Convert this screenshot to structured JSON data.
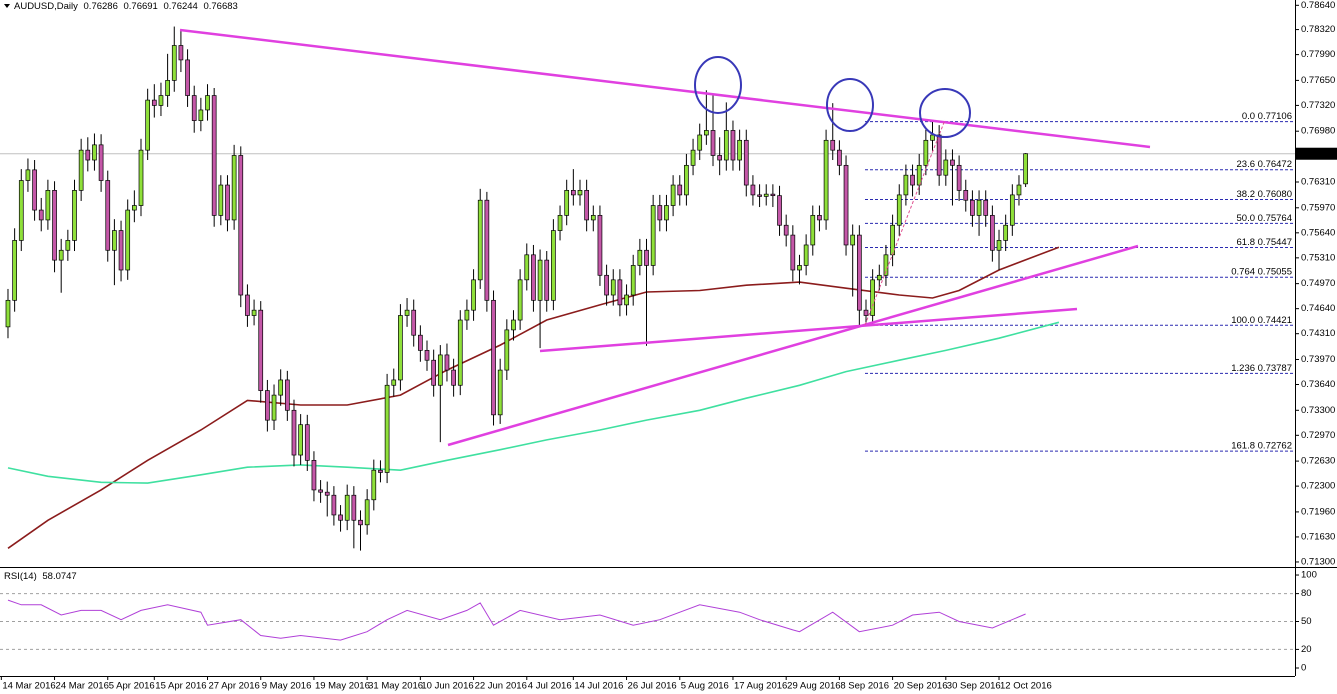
{
  "chart_data": {
    "type": "candlestick",
    "title": "AUDUSD,Daily",
    "up_color": "#8fe03a",
    "down_color": "#c457a8",
    "ohlc": [
      [
        0.744,
        0.749,
        0.7425,
        0.7475
      ],
      [
        0.7475,
        0.757,
        0.746,
        0.7554
      ],
      [
        0.7554,
        0.7648,
        0.754,
        0.7633
      ],
      [
        0.7633,
        0.7662,
        0.7618,
        0.7647
      ],
      [
        0.7647,
        0.766,
        0.758,
        0.7594
      ],
      [
        0.7594,
        0.761,
        0.7566,
        0.7581
      ],
      [
        0.7581,
        0.7634,
        0.7568,
        0.762
      ],
      [
        0.762,
        0.7632,
        0.7512,
        0.7528
      ],
      [
        0.7528,
        0.7556,
        0.7485,
        0.7541
      ],
      [
        0.7541,
        0.7568,
        0.7527,
        0.7554
      ],
      [
        0.7554,
        0.7634,
        0.754,
        0.762
      ],
      [
        0.762,
        0.7688,
        0.7606,
        0.7673
      ],
      [
        0.7673,
        0.769,
        0.7645,
        0.766
      ],
      [
        0.766,
        0.7695,
        0.7646,
        0.768
      ],
      [
        0.768,
        0.7694,
        0.7618,
        0.7633
      ],
      [
        0.7633,
        0.7646,
        0.7526,
        0.7541
      ],
      [
        0.7541,
        0.7582,
        0.7495,
        0.7567
      ],
      [
        0.7567,
        0.758,
        0.75,
        0.7515
      ],
      [
        0.7515,
        0.7608,
        0.7502,
        0.7594
      ],
      [
        0.7594,
        0.762,
        0.7578,
        0.76
      ],
      [
        0.76,
        0.7688,
        0.7586,
        0.7673
      ],
      [
        0.7673,
        0.7754,
        0.766,
        0.7739
      ],
      [
        0.7739,
        0.776,
        0.7716,
        0.7732
      ],
      [
        0.7732,
        0.7762,
        0.7718,
        0.7745
      ],
      [
        0.7745,
        0.78,
        0.773,
        0.7765
      ],
      [
        0.7765,
        0.7836,
        0.775,
        0.7811
      ],
      [
        0.7811,
        0.783,
        0.7776,
        0.7792
      ],
      [
        0.7792,
        0.7806,
        0.773,
        0.7745
      ],
      [
        0.7745,
        0.7758,
        0.7696,
        0.7712
      ],
      [
        0.7712,
        0.7742,
        0.7698,
        0.7726
      ],
      [
        0.7726,
        0.776,
        0.7712,
        0.7745
      ],
      [
        0.7745,
        0.7755,
        0.7572,
        0.7587
      ],
      [
        0.7587,
        0.764,
        0.7574,
        0.7627
      ],
      [
        0.7627,
        0.764,
        0.7566,
        0.7581
      ],
      [
        0.7581,
        0.768,
        0.7568,
        0.7666
      ],
      [
        0.7666,
        0.7678,
        0.7466,
        0.7482
      ],
      [
        0.7482,
        0.7496,
        0.744,
        0.7455
      ],
      [
        0.7455,
        0.7476,
        0.7442,
        0.7462
      ],
      [
        0.7462,
        0.7474,
        0.734,
        0.7356
      ],
      [
        0.7356,
        0.737,
        0.7302,
        0.7317
      ],
      [
        0.7317,
        0.7364,
        0.7304,
        0.735
      ],
      [
        0.735,
        0.7384,
        0.7336,
        0.737
      ],
      [
        0.737,
        0.7382,
        0.7316,
        0.733
      ],
      [
        0.733,
        0.7344,
        0.7256,
        0.7271
      ],
      [
        0.7271,
        0.7325,
        0.7258,
        0.7311
      ],
      [
        0.7311,
        0.7324,
        0.725,
        0.7264
      ],
      [
        0.7264,
        0.7276,
        0.721,
        0.7225
      ],
      [
        0.7225,
        0.7238,
        0.7208,
        0.7222
      ],
      [
        0.7222,
        0.7236,
        0.719,
        0.7218
      ],
      [
        0.7218,
        0.723,
        0.7178,
        0.7192
      ],
      [
        0.7192,
        0.7205,
        0.717,
        0.7185
      ],
      [
        0.7185,
        0.7232,
        0.7172,
        0.7218
      ],
      [
        0.7218,
        0.723,
        0.7148,
        0.7185
      ],
      [
        0.7185,
        0.7198,
        0.7145,
        0.7179
      ],
      [
        0.7179,
        0.7226,
        0.7166,
        0.7212
      ],
      [
        0.7212,
        0.7265,
        0.7198,
        0.7251
      ],
      [
        0.7251,
        0.7264,
        0.7235,
        0.7248
      ],
      [
        0.7248,
        0.7378,
        0.7234,
        0.7363
      ],
      [
        0.7363,
        0.7385,
        0.7348,
        0.737
      ],
      [
        0.737,
        0.747,
        0.7356,
        0.7455
      ],
      [
        0.7455,
        0.7478,
        0.744,
        0.7462
      ],
      [
        0.7462,
        0.7476,
        0.7414,
        0.7429
      ],
      [
        0.7429,
        0.7442,
        0.7394,
        0.7409
      ],
      [
        0.7409,
        0.7422,
        0.7382,
        0.7396
      ],
      [
        0.7396,
        0.741,
        0.7348,
        0.7363
      ],
      [
        0.7363,
        0.7416,
        0.7288,
        0.7403
      ],
      [
        0.7403,
        0.7418,
        0.7368,
        0.7383
      ],
      [
        0.7383,
        0.7398,
        0.7348,
        0.7363
      ],
      [
        0.7363,
        0.7462,
        0.735,
        0.7449
      ],
      [
        0.7449,
        0.7476,
        0.7436,
        0.7462
      ],
      [
        0.7462,
        0.7516,
        0.7448,
        0.7502
      ],
      [
        0.7502,
        0.7622,
        0.749,
        0.7607
      ],
      [
        0.7607,
        0.7618,
        0.746,
        0.7475
      ],
      [
        0.7475,
        0.7488,
        0.731,
        0.7324
      ],
      [
        0.7324,
        0.7398,
        0.7312,
        0.7383
      ],
      [
        0.7383,
        0.745,
        0.737,
        0.7436
      ],
      [
        0.7436,
        0.7462,
        0.7422,
        0.7449
      ],
      [
        0.7449,
        0.7516,
        0.7436,
        0.7502
      ],
      [
        0.7502,
        0.755,
        0.7488,
        0.7535
      ],
      [
        0.7535,
        0.7548,
        0.746,
        0.7475
      ],
      [
        0.7475,
        0.7542,
        0.7412,
        0.7528
      ],
      [
        0.7528,
        0.754,
        0.746,
        0.7475
      ],
      [
        0.7475,
        0.7582,
        0.7462,
        0.7567
      ],
      [
        0.7567,
        0.76,
        0.7554,
        0.7587
      ],
      [
        0.7587,
        0.7634,
        0.7574,
        0.762
      ],
      [
        0.762,
        0.7648,
        0.76,
        0.7614
      ],
      [
        0.7614,
        0.7634,
        0.76,
        0.762
      ],
      [
        0.762,
        0.7634,
        0.7566,
        0.7581
      ],
      [
        0.7581,
        0.76,
        0.7566,
        0.7587
      ],
      [
        0.7587,
        0.76,
        0.7494,
        0.7508
      ],
      [
        0.7508,
        0.7522,
        0.7468,
        0.7482
      ],
      [
        0.7482,
        0.7516,
        0.7468,
        0.7502
      ],
      [
        0.7502,
        0.7516,
        0.7454,
        0.7469
      ],
      [
        0.7469,
        0.7496,
        0.7455,
        0.7482
      ],
      [
        0.7482,
        0.7535,
        0.7468,
        0.7521
      ],
      [
        0.7521,
        0.7556,
        0.7508,
        0.7541
      ],
      [
        0.7541,
        0.7556,
        0.7415,
        0.7521
      ],
      [
        0.7521,
        0.7614,
        0.7508,
        0.76
      ],
      [
        0.76,
        0.7614,
        0.7566,
        0.7581
      ],
      [
        0.7581,
        0.7614,
        0.7566,
        0.76
      ],
      [
        0.76,
        0.764,
        0.7586,
        0.7627
      ],
      [
        0.7627,
        0.764,
        0.76,
        0.7614
      ],
      [
        0.7614,
        0.7668,
        0.76,
        0.7653
      ],
      [
        0.7653,
        0.7688,
        0.764,
        0.7673
      ],
      [
        0.7673,
        0.7708,
        0.766,
        0.7693
      ],
      [
        0.7693,
        0.7752,
        0.768,
        0.7699
      ],
      [
        0.7699,
        0.7746,
        0.7652,
        0.7666
      ],
      [
        0.7666,
        0.769,
        0.764,
        0.766
      ],
      [
        0.766,
        0.7736,
        0.7646,
        0.7699
      ],
      [
        0.7699,
        0.7712,
        0.7646,
        0.766
      ],
      [
        0.766,
        0.77,
        0.7646,
        0.7686
      ],
      [
        0.7686,
        0.77,
        0.7612,
        0.7627
      ],
      [
        0.7627,
        0.764,
        0.76,
        0.7614
      ],
      [
        0.7614,
        0.7628,
        0.7598,
        0.7612
      ],
      [
        0.7612,
        0.7628,
        0.76,
        0.7615
      ],
      [
        0.7615,
        0.7628,
        0.7598,
        0.7613
      ],
      [
        0.7613,
        0.7626,
        0.756,
        0.7574
      ],
      [
        0.7574,
        0.7588,
        0.7546,
        0.7561
      ],
      [
        0.7561,
        0.7574,
        0.75,
        0.7515
      ],
      [
        0.7515,
        0.7535,
        0.7496,
        0.7521
      ],
      [
        0.7521,
        0.7562,
        0.7508,
        0.7548
      ],
      [
        0.7548,
        0.76,
        0.7534,
        0.7587
      ],
      [
        0.7587,
        0.76,
        0.7566,
        0.7581
      ],
      [
        0.7581,
        0.77,
        0.7568,
        0.7686
      ],
      [
        0.7686,
        0.7735,
        0.766,
        0.7673
      ],
      [
        0.7673,
        0.7686,
        0.764,
        0.7653
      ],
      [
        0.7653,
        0.7666,
        0.7534,
        0.7548
      ],
      [
        0.7548,
        0.7575,
        0.748,
        0.7561
      ],
      [
        0.7561,
        0.7574,
        0.744,
        0.7462
      ],
      [
        0.7462,
        0.7476,
        0.7442,
        0.7455
      ],
      [
        0.7455,
        0.7516,
        0.7442,
        0.7502
      ],
      [
        0.7502,
        0.7522,
        0.7488,
        0.7508
      ],
      [
        0.7508,
        0.7548,
        0.7494,
        0.7535
      ],
      [
        0.7535,
        0.7588,
        0.752,
        0.7574
      ],
      [
        0.7574,
        0.7628,
        0.756,
        0.7614
      ],
      [
        0.7614,
        0.7654,
        0.76,
        0.764
      ],
      [
        0.764,
        0.7654,
        0.7612,
        0.7627
      ],
      [
        0.7627,
        0.7668,
        0.7614,
        0.7653
      ],
      [
        0.7653,
        0.77,
        0.764,
        0.7686
      ],
      [
        0.7686,
        0.7712,
        0.7672,
        0.7693
      ],
      [
        0.7693,
        0.7706,
        0.7626,
        0.764
      ],
      [
        0.764,
        0.7674,
        0.7626,
        0.766
      ],
      [
        0.766,
        0.7674,
        0.76,
        0.7653
      ],
      [
        0.7653,
        0.7666,
        0.7606,
        0.762
      ],
      [
        0.762,
        0.7634,
        0.7592,
        0.7607
      ],
      [
        0.7607,
        0.762,
        0.7572,
        0.7587
      ],
      [
        0.7587,
        0.762,
        0.756,
        0.7607
      ],
      [
        0.7607,
        0.762,
        0.7572,
        0.7587
      ],
      [
        0.7587,
        0.76,
        0.7526,
        0.7541
      ],
      [
        0.7541,
        0.7568,
        0.7515,
        0.7554
      ],
      [
        0.7554,
        0.7588,
        0.754,
        0.7574
      ],
      [
        0.7574,
        0.7628,
        0.756,
        0.7614
      ],
      [
        0.7614,
        0.764,
        0.76,
        0.7627
      ],
      [
        0.76286,
        0.76691,
        0.76244,
        0.76683
      ]
    ],
    "xlim": [
      -1.2,
      193.5
    ],
    "ylim": [
      0.7126,
      0.7871
    ],
    "yticks": [
      {
        "value": 0.7864,
        "label": "0.78640"
      },
      {
        "value": 0.7832,
        "label": "0.78320"
      },
      {
        "value": 0.7799,
        "label": "0.77990"
      },
      {
        "value": 0.7765,
        "label": "0.77650"
      },
      {
        "value": 0.7732,
        "label": "0.77320"
      },
      {
        "value": 0.7698,
        "label": "0.76980"
      },
      {
        "value": 0.7631,
        "label": "0.76310"
      },
      {
        "value": 0.7597,
        "label": "0.75970"
      },
      {
        "value": 0.7564,
        "label": "0.75640"
      },
      {
        "value": 0.7531,
        "label": "0.75310"
      },
      {
        "value": 0.7497,
        "label": "0.74970"
      },
      {
        "value": 0.7464,
        "label": "0.74640"
      },
      {
        "value": 0.7431,
        "label": "0.74310"
      },
      {
        "value": 0.7397,
        "label": "0.73970"
      },
      {
        "value": 0.7364,
        "label": "0.73640"
      },
      {
        "value": 0.733,
        "label": "0.73300"
      },
      {
        "value": 0.7297,
        "label": "0.72970"
      },
      {
        "value": 0.7263,
        "label": "0.72630"
      },
      {
        "value": 0.723,
        "label": "0.72300"
      },
      {
        "value": 0.7196,
        "label": "0.71960"
      },
      {
        "value": 0.7163,
        "label": "0.71630"
      },
      {
        "value": 0.713,
        "label": "0.71300"
      }
    ],
    "xticks": [
      {
        "value": -1,
        "label": "14 Mar 2016"
      },
      {
        "value": 7,
        "label": "24 Mar 2016"
      },
      {
        "value": 15,
        "label": "5 Apr 2016"
      },
      {
        "value": 22,
        "label": "15 Apr 2016"
      },
      {
        "value": 30,
        "label": "27 Apr 2016"
      },
      {
        "value": 38,
        "label": "9 May 2016"
      },
      {
        "value": 46,
        "label": "19 May 2016"
      },
      {
        "value": 54,
        "label": "31 May 2016"
      },
      {
        "value": 62,
        "label": "10 Jun 2016"
      },
      {
        "value": 70,
        "label": "22 Jun 2016"
      },
      {
        "value": 78,
        "label": "4 Jul 2016"
      },
      {
        "value": 85,
        "label": "14 Jul 2016"
      },
      {
        "value": 93,
        "label": "26 Jul 2016"
      },
      {
        "value": 101,
        "label": "5 Aug 2016"
      },
      {
        "value": 109,
        "label": "17 Aug 2016"
      },
      {
        "value": 117,
        "label": "29 Aug 2016"
      },
      {
        "value": 125,
        "label": "8 Sep 2016"
      },
      {
        "value": 133,
        "label": "20 Sep 2016"
      },
      {
        "value": 141,
        "label": "30 Sep 2016"
      },
      {
        "value": 149,
        "label": "12 Oct 2016"
      }
    ],
    "moving_averages": [
      {
        "color": "#8b1c1c",
        "x": [
          0,
          6,
          14,
          21,
          29,
          36,
          44,
          51,
          59,
          66,
          74,
          81,
          89,
          96,
          104,
          111,
          119,
          126,
          134,
          139,
          143,
          149,
          158
        ],
        "values": [
          0.7148,
          0.7185,
          0.7225,
          0.7264,
          0.7304,
          0.7343,
          0.7337,
          0.7337,
          0.735,
          0.7383,
          0.7416,
          0.7449,
          0.7469,
          0.7486,
          0.7488,
          0.7495,
          0.7499,
          0.7491,
          0.7482,
          0.7478,
          0.7488,
          0.7515,
          0.7545
        ]
      },
      {
        "color": "#3fe0a0",
        "x": [
          0,
          6,
          14,
          21,
          29,
          36,
          44,
          51,
          59,
          66,
          74,
          81,
          89,
          96,
          104,
          111,
          119,
          126,
          134,
          141,
          149,
          158
        ],
        "values": [
          0.7254,
          0.7243,
          0.7235,
          0.7234,
          0.7245,
          0.7255,
          0.7258,
          0.7255,
          0.7251,
          0.7264,
          0.7278,
          0.7291,
          0.7304,
          0.7317,
          0.733,
          0.7346,
          0.7363,
          0.7381,
          0.7396,
          0.7409,
          0.7425,
          0.7446
        ]
      }
    ],
    "fib_color": "#2a2ab0",
    "fib": [
      {
        "label": "0.0 0.77106",
        "value": 0.77106
      },
      {
        "label": "23.6 0.76472",
        "value": 0.76472
      },
      {
        "label": "38.2 0.76080",
        "value": 0.7608
      },
      {
        "label": "50.0 0.75764",
        "value": 0.75764
      },
      {
        "label": "61.8 0.75447",
        "value": 0.75447
      },
      {
        "label": "0.764 0.75055",
        "value": 0.75055
      },
      {
        "label": "100.0 0.74421",
        "value": 0.74421
      },
      {
        "label": "1.236 0.73787",
        "value": 0.73787
      },
      {
        "label": "161.8 0.72762",
        "value": 0.72762
      }
    ],
    "rsi": {
      "title": "RSI(14)",
      "color": "#b040d8",
      "ylim": [
        -8.6,
        105.4
      ],
      "yticks": [
        100,
        80,
        50,
        20,
        0
      ],
      "levels": [
        80,
        50,
        20
      ],
      "x": [
        0,
        2,
        5,
        8,
        11,
        14,
        17,
        20,
        24,
        29,
        30,
        35,
        38,
        41,
        44,
        50,
        54,
        57,
        60,
        65,
        69,
        71,
        73,
        77,
        83,
        89,
        94,
        98,
        104,
        110,
        113,
        118,
        119,
        124,
        128,
        133,
        136,
        140,
        143,
        148,
        149,
        153
      ],
      "values": [
        73,
        68,
        68,
        57,
        62,
        62,
        52,
        62,
        68,
        60,
        46,
        52,
        35,
        32,
        35,
        30,
        39,
        52,
        62,
        52,
        62,
        70,
        46,
        62,
        52,
        57,
        46,
        52,
        68,
        60,
        52,
        41,
        39,
        60,
        39,
        46,
        57,
        60,
        50,
        43,
        46,
        58.0747
      ]
    }
  }
}
